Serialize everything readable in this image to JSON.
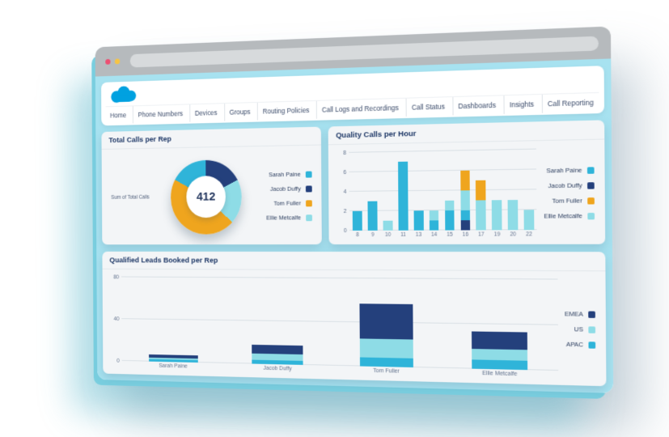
{
  "browser": {
    "controls": [
      {
        "name": "close",
        "color": "#ed4e71"
      },
      {
        "name": "minimize",
        "color": "#f6c444"
      }
    ]
  },
  "logo": {
    "name": "salesforce-cloud",
    "color": "#00a1e0"
  },
  "nav": {
    "items": [
      "Home",
      "Phone Numbers",
      "Devices",
      "Groups",
      "Routing Policies",
      "Call Logs and Recordings",
      "Call Status",
      "Dashboards",
      "Insights",
      "Call Reporting"
    ]
  },
  "colors": {
    "Sarah Paine": "#2fb4d9",
    "Jacob Duffy": "#24407c",
    "Tom Fuller": "#efa51e",
    "Ellie Metcalfe": "#8edce6",
    "EMEA": "#24407c",
    "US": "#8edce6",
    "APAC": "#2fb4d9"
  },
  "cards": {
    "total_calls": {
      "title": "Total Calls per Rep",
      "axis_label": "Sum of Total Calls",
      "total": "412",
      "legend": [
        "Sarah Paine",
        "Jacob Duffy",
        "Tom Fuller",
        "Ellie Metcalfe"
      ],
      "chart": {
        "type": "pie",
        "series": [
          {
            "name": "Jacob Duffy",
            "value": 72
          },
          {
            "name": "Ellie Metcalfe",
            "value": 80
          },
          {
            "name": "Tom Fuller",
            "value": 190
          },
          {
            "name": "Sarah Paine",
            "value": 70
          }
        ]
      }
    },
    "quality_calls": {
      "title": "Quality Calls per Hour",
      "legend": [
        "Sarah Paine",
        "Jacob Duffy",
        "Tom Fuller",
        "Ellie Metcalfe"
      ],
      "chart": {
        "type": "bar",
        "ymax": 8,
        "yticks": [
          0,
          2,
          4,
          6,
          8
        ],
        "bars": [
          {
            "x": "8",
            "segments": [
              [
                "Sarah Paine",
                2
              ]
            ]
          },
          {
            "x": "9",
            "segments": [
              [
                "Sarah Paine",
                3
              ]
            ]
          },
          {
            "x": "10",
            "segments": [
              [
                "Ellie Metcalfe",
                1
              ]
            ]
          },
          {
            "x": "11",
            "segments": [
              [
                "Sarah Paine",
                7
              ]
            ]
          },
          {
            "x": "13",
            "segments": [
              [
                "Sarah Paine",
                2
              ]
            ]
          },
          {
            "x": "14",
            "segments": [
              [
                "Sarah Paine",
                1
              ],
              [
                "Ellie Metcalfe",
                1
              ]
            ]
          },
          {
            "x": "15",
            "segments": [
              [
                "Sarah Paine",
                2
              ],
              [
                "Ellie Metcalfe",
                1
              ]
            ]
          },
          {
            "x": "16",
            "segments": [
              [
                "Jacob Duffy",
                1
              ],
              [
                "Sarah Paine",
                1
              ],
              [
                "Ellie Metcalfe",
                2
              ],
              [
                "Tom Fuller",
                2
              ]
            ]
          },
          {
            "x": "17",
            "segments": [
              [
                "Ellie Metcalfe",
                3
              ],
              [
                "Tom Fuller",
                2
              ]
            ]
          },
          {
            "x": "19",
            "segments": [
              [
                "Ellie Metcalfe",
                3
              ]
            ]
          },
          {
            "x": "20",
            "segments": [
              [
                "Ellie Metcalfe",
                3
              ]
            ]
          },
          {
            "x": "22",
            "segments": [
              [
                "Ellie Metcalfe",
                2
              ]
            ]
          }
        ]
      }
    },
    "qualified_leads": {
      "title": "Qualified Leads Booked per Rep",
      "legend": [
        "EMEA",
        "US",
        "APAC"
      ],
      "chart": {
        "type": "bar",
        "ymax": 80,
        "yticks": [
          0,
          40,
          80
        ],
        "bars": [
          {
            "x": "Sarah Paine",
            "segments": [
              [
                "APAC",
                2
              ],
              [
                "US",
                2
              ],
              [
                "EMEA",
                3
              ]
            ]
          },
          {
            "x": "Jacob Duffy",
            "segments": [
              [
                "APAC",
                4
              ],
              [
                "US",
                6
              ],
              [
                "EMEA",
                8
              ]
            ]
          },
          {
            "x": "Tom Fuller",
            "segments": [
              [
                "APAC",
                8
              ],
              [
                "US",
                17
              ],
              [
                "EMEA",
                32
              ]
            ]
          },
          {
            "x": "Ellie Metcalfe",
            "segments": [
              [
                "APAC",
                8
              ],
              [
                "US",
                10
              ],
              [
                "EMEA",
                15
              ]
            ]
          }
        ]
      }
    }
  }
}
